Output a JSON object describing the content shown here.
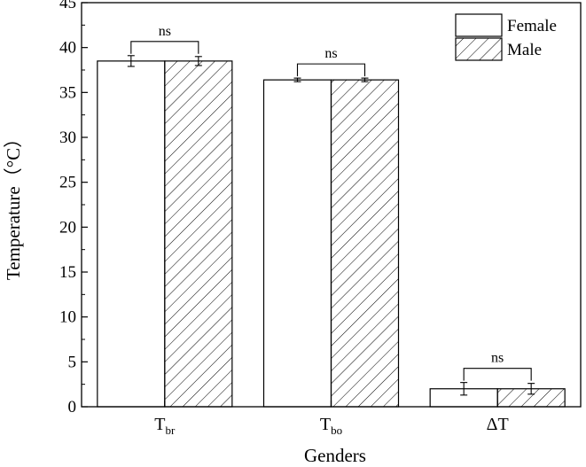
{
  "chart_data": {
    "type": "bar",
    "xlabel": "Genders",
    "ylabel": "Temperature（°C）",
    "ylim": [
      0,
      45
    ],
    "yticks": [
      0,
      5,
      10,
      15,
      20,
      25,
      30,
      35,
      40,
      45
    ],
    "grid": false,
    "legend_position": "top-right",
    "categories": [
      {
        "main": "T",
        "sub": "br"
      },
      {
        "main": "T",
        "sub": "bo"
      },
      {
        "main": "ΔT",
        "sub": ""
      }
    ],
    "series": [
      {
        "name": "Female",
        "pattern": "solid-white",
        "values": [
          38.5,
          36.4,
          2.0
        ],
        "errors": [
          0.6,
          0.2,
          0.7
        ]
      },
      {
        "name": "Male",
        "pattern": "diagonal-hatch",
        "values": [
          38.5,
          36.4,
          2.0
        ],
        "errors": [
          0.5,
          0.2,
          0.6
        ]
      }
    ],
    "annotations": [
      "ns",
      "ns",
      "ns"
    ]
  }
}
